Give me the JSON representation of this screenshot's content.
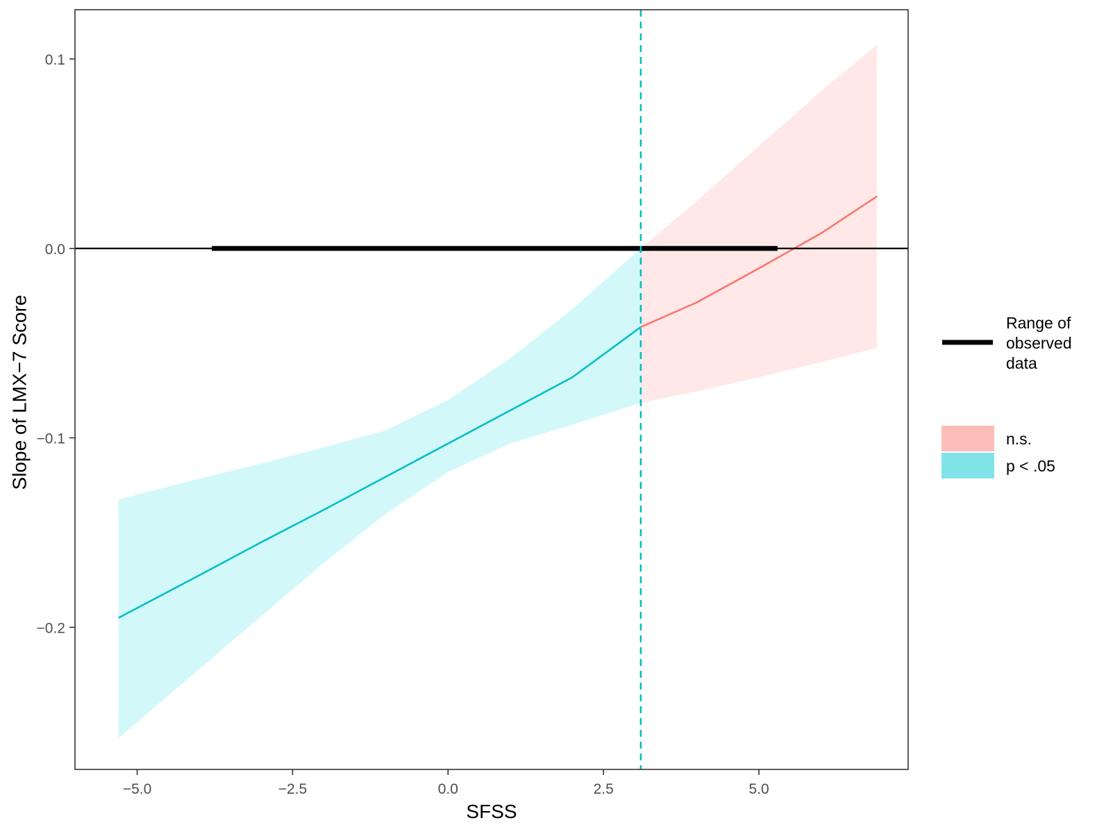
{
  "chart_data": {
    "type": "line",
    "title": "",
    "xlabel": "SFSS",
    "ylabel": "Slope of LMX−7 Score",
    "xlim": [
      -6.0,
      7.4
    ],
    "ylim": [
      -0.275,
      0.126
    ],
    "x_ticks": [
      -5.0,
      -2.5,
      0.0,
      2.5,
      5.0
    ],
    "x_tick_labels": [
      "−5.0",
      "−2.5",
      "0.0",
      "2.5",
      "5.0"
    ],
    "y_ticks": [
      0.1,
      0.0,
      -0.1,
      -0.2
    ],
    "y_tick_labels": [
      "0.1",
      "0.0",
      "−0.1",
      "−0.2"
    ],
    "grid": false,
    "zero_line": 0.0,
    "johnson_neyman_point": 3.1,
    "observed_range": [
      -3.8,
      5.3
    ],
    "series": [
      {
        "name": "p < .05",
        "color": "#00BFC4",
        "fill": "#D2F8FA",
        "x": [
          -5.3,
          -4.0,
          -3.0,
          -2.0,
          -1.0,
          0.0,
          1.0,
          2.0,
          3.1
        ],
        "y": [
          -0.195,
          -0.1725,
          -0.155,
          -0.138,
          -0.1205,
          -0.103,
          -0.0855,
          -0.068,
          -0.0415
        ],
        "lower": [
          -0.2585,
          -0.222,
          -0.194,
          -0.166,
          -0.14,
          -0.118,
          -0.103,
          -0.093,
          -0.0815
        ],
        "upper": [
          -0.1325,
          -0.1215,
          -0.1135,
          -0.105,
          -0.096,
          -0.08,
          -0.058,
          -0.032,
          0.0
        ]
      },
      {
        "name": "n.s.",
        "color": "#F8766D",
        "fill": "#FFE8E7",
        "x": [
          3.1,
          4.0,
          5.0,
          6.0,
          6.9
        ],
        "y": [
          -0.0415,
          -0.0285,
          -0.0105,
          0.008,
          0.0275
        ],
        "lower": [
          -0.0815,
          -0.0755,
          -0.068,
          -0.06,
          -0.0525
        ],
        "upper": [
          0.0,
          0.025,
          0.054,
          0.083,
          0.1075
        ]
      }
    ],
    "legend": {
      "position": "right",
      "range_label": [
        "Range of",
        "observed",
        "data"
      ],
      "entries": [
        {
          "label": "n.s.",
          "color": "#FBBDB8"
        },
        {
          "label": "p < .05",
          "color": "#7FE3E7"
        }
      ]
    }
  }
}
